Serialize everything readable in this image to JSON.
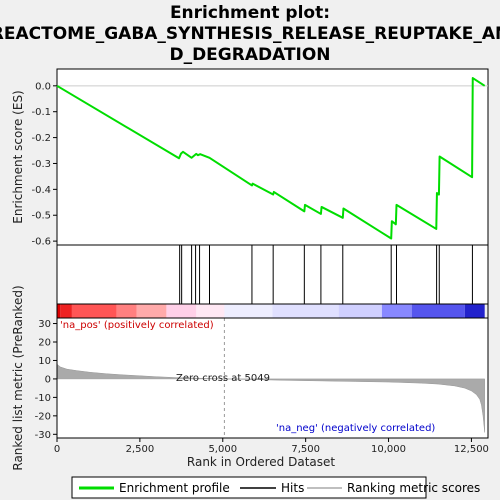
{
  "chart_data": {
    "type": "line",
    "title_lines": [
      "Enrichment plot:",
      "REACTOME_GABA_SYNTHESIS_RELEASE_REUPTAKE_AN",
      "D_DEGRADATION"
    ],
    "xlabel": "Rank in Ordered Dataset",
    "es_ylabel": "Enrichment score (ES)",
    "metric_ylabel": "Ranked list metric (PreRanked)",
    "xlim": [
      0,
      13000
    ],
    "x_ticks": [
      0,
      2500,
      5000,
      7500,
      10000,
      12500
    ],
    "x_tick_labels": [
      "0",
      "2,500",
      "5,000",
      "7,500",
      "10,000",
      "12,500"
    ],
    "es_ylim": [
      -0.615,
      0.065
    ],
    "es_ticks": [
      0.0,
      -0.1,
      -0.2,
      -0.3,
      -0.4,
      -0.5,
      -0.6
    ],
    "es_tick_labels": [
      "0.0",
      "-0.1",
      "-0.2",
      "-0.3",
      "-0.4",
      "-0.5",
      "-0.6"
    ],
    "metric_ylim": [
      -32,
      33
    ],
    "metric_ticks": [
      30,
      20,
      10,
      0,
      -10,
      -20,
      -30
    ],
    "metric_tick_labels": [
      "30",
      "20",
      "10",
      "0",
      "-10",
      "-20",
      "-30"
    ],
    "series": [
      {
        "name": "Enrichment profile",
        "color": "#00dd00",
        "x": [
          0,
          3680,
          3740,
          3800,
          4060,
          4200,
          4250,
          4320,
          4600,
          5880,
          5900,
          6520,
          6540,
          7460,
          7480,
          7960,
          7980,
          8620,
          8640,
          10080,
          10100,
          10220,
          10240,
          11440,
          11460,
          11520,
          11540,
          12520,
          12540,
          12900
        ],
        "y": [
          0.0,
          -0.28,
          -0.262,
          -0.255,
          -0.278,
          -0.263,
          -0.268,
          -0.264,
          -0.278,
          -0.385,
          -0.378,
          -0.42,
          -0.41,
          -0.485,
          -0.46,
          -0.495,
          -0.468,
          -0.51,
          -0.474,
          -0.59,
          -0.523,
          -0.535,
          -0.46,
          -0.553,
          -0.414,
          -0.42,
          -0.273,
          -0.353,
          0.03,
          0.0
        ]
      }
    ],
    "hits": [
      3700,
      3760,
      4060,
      4180,
      4300,
      4600,
      5880,
      6520,
      7460,
      7960,
      8620,
      10080,
      10240,
      11450,
      11530,
      12530
    ],
    "metric_profile": {
      "name": "Ranking metric scores",
      "x": [
        0,
        100,
        300,
        600,
        1000,
        1500,
        2000,
        2500,
        3000,
        3500,
        4000,
        4500,
        5049,
        6000,
        7000,
        8000,
        9000,
        10000,
        11000,
        11500,
        12000,
        12300,
        12500,
        12650,
        12750,
        12800,
        12850,
        12900
      ],
      "y": [
        8,
        6.5,
        5.3,
        4.5,
        3.6,
        2.8,
        2.2,
        1.7,
        1.2,
        0.8,
        0.5,
        0.3,
        0,
        -0.4,
        -0.8,
        -1.1,
        -1.4,
        -1.7,
        -2.3,
        -2.8,
        -3.8,
        -5.0,
        -6.5,
        -8.5,
        -11,
        -14,
        -20,
        -29
      ]
    },
    "heatmap_segments": [
      {
        "from": 0,
        "to": 100,
        "color": "#dd0000"
      },
      {
        "from": 100,
        "to": 450,
        "color": "#ee2222"
      },
      {
        "from": 450,
        "to": 1800,
        "color": "#ff5555"
      },
      {
        "from": 1800,
        "to": 2400,
        "color": "#ff8080"
      },
      {
        "from": 2400,
        "to": 3300,
        "color": "#ffaaaa"
      },
      {
        "from": 3300,
        "to": 4200,
        "color": "#ffd0e8"
      },
      {
        "from": 4200,
        "to": 5049,
        "color": "#ffe8f4"
      },
      {
        "from": 5049,
        "to": 6500,
        "color": "#eeeeff"
      },
      {
        "from": 6500,
        "to": 8500,
        "color": "#e0e0ff"
      },
      {
        "from": 8500,
        "to": 9800,
        "color": "#d0d0ff"
      },
      {
        "from": 9800,
        "to": 10700,
        "color": "#8888ff"
      },
      {
        "from": 10700,
        "to": 12300,
        "color": "#5555ee"
      },
      {
        "from": 12300,
        "to": 12900,
        "color": "#2222cc"
      }
    ],
    "zero_cross": 5049,
    "annotations": {
      "pos_label": "'na_pos' (positively correlated)",
      "neg_label": "'na_neg' (negatively correlated)",
      "zero_cross_label": "Zero cross at 5049"
    },
    "legend": {
      "placement": "bottom",
      "items": [
        {
          "label": "Enrichment profile",
          "kind": "line",
          "color": "#00dd00"
        },
        {
          "label": "Hits",
          "kind": "line",
          "color": "#000000"
        },
        {
          "label": "Ranking metric scores",
          "kind": "line",
          "color": "#aaaaaa"
        }
      ]
    },
    "colors": {
      "pos_label": "#cc0000",
      "neg_label": "#0000cc",
      "metric_fill": "#aaaaaa",
      "zero_line": "#999999"
    }
  }
}
